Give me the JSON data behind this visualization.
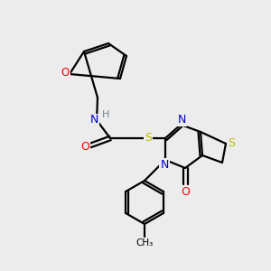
{
  "bg_color": "#ececec",
  "atom_colors": {
    "C": "#000000",
    "N": "#0000cc",
    "O": "#ff0000",
    "S": "#bbbb00",
    "H": "#708090"
  },
  "bond_color": "#000000",
  "figsize": [
    3.0,
    3.0
  ],
  "dpi": 100,
  "lw": 1.6
}
